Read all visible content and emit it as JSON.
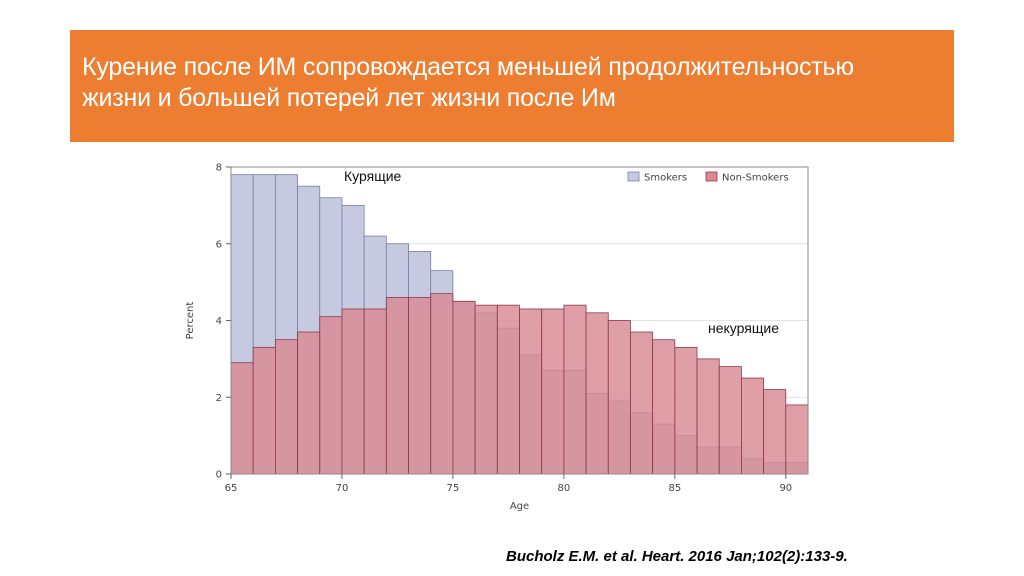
{
  "slide": {
    "title": "Курение после ИМ сопровождается меньшей продолжительностью\nжизни и большей потерей лет жизни после Им",
    "annotation_smokers": "Курящие",
    "annotation_nonsmokers": "некурящие",
    "citation": "Bucholz E.M. et al. Heart. 2016 Jan;102(2):133-9."
  },
  "colors": {
    "title_bar": "#ed7d31",
    "smokers_fill": "#c5cae0",
    "smokers_stroke": "#7a7fa6",
    "nonsmokers_fill": "#d88a94",
    "nonsmokers_stroke": "#8e3a48",
    "overlap_fill": "#b56f7f"
  },
  "chart_data": {
    "type": "bar",
    "style": "overlaid histogram",
    "x": [
      65,
      66,
      67,
      68,
      69,
      70,
      71,
      72,
      73,
      74,
      75,
      76,
      77,
      78,
      79,
      80,
      81,
      82,
      83,
      84,
      85,
      86,
      87,
      88,
      89,
      90
    ],
    "series": [
      {
        "name": "Smokers",
        "values": [
          7.8,
          7.8,
          7.8,
          7.5,
          7.2,
          7.0,
          6.2,
          6.0,
          5.8,
          5.3,
          4.5,
          4.2,
          3.8,
          3.1,
          2.7,
          2.7,
          2.1,
          1.9,
          1.6,
          1.3,
          1.0,
          0.7,
          0.7,
          0.4,
          0.3,
          0.3
        ]
      },
      {
        "name": "Non-Smokers",
        "values": [
          2.9,
          3.3,
          3.5,
          3.7,
          4.1,
          4.3,
          4.3,
          4.6,
          4.6,
          4.7,
          4.5,
          4.4,
          4.4,
          4.3,
          4.3,
          4.4,
          4.2,
          4.0,
          3.7,
          3.5,
          3.3,
          3.0,
          2.8,
          2.5,
          2.2,
          1.8
        ]
      }
    ],
    "xlabel": "Age",
    "ylabel": "Percent",
    "xlim": [
      65,
      90
    ],
    "ylim": [
      0,
      8
    ],
    "xticks": [
      "65",
      "70",
      "75",
      "80",
      "85",
      "90"
    ],
    "yticks": [
      "0",
      "2",
      "4",
      "6",
      "8"
    ],
    "legend": [
      "Smokers",
      "Non-Smokers"
    ],
    "legend_position": "top-right",
    "grid": true
  }
}
